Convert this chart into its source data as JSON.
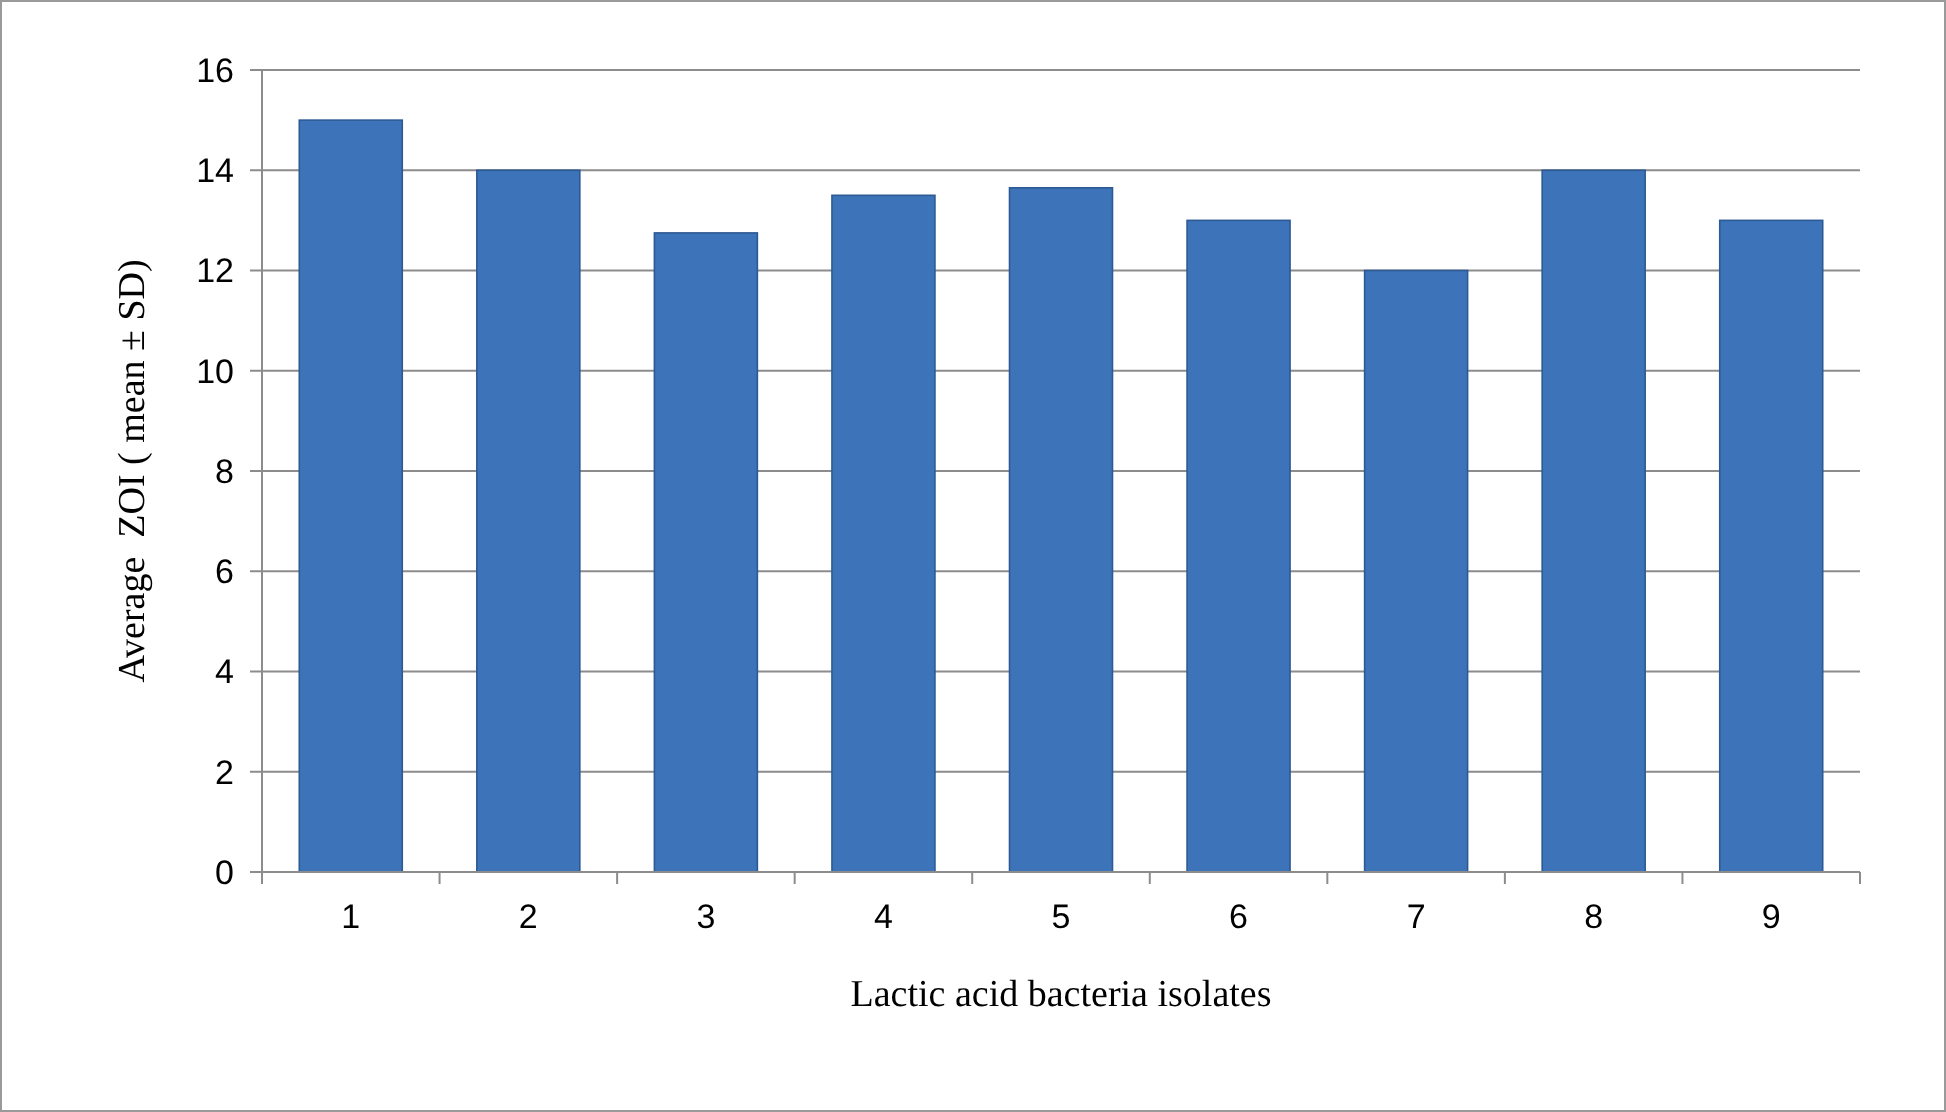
{
  "chart_data": {
    "type": "bar",
    "xlabel": "Lactic acid bacteria isolates",
    "ylabel": "Average  ZOI ( mean ± SD)",
    "categories": [
      "1",
      "2",
      "3",
      "4",
      "5",
      "6",
      "7",
      "8",
      "9"
    ],
    "values": [
      15,
      14,
      12.75,
      13.5,
      13.65,
      13,
      12,
      14,
      13
    ],
    "color": "#3c73b9",
    "ylim": [
      0,
      16
    ],
    "yticks": [
      0,
      2,
      4,
      6,
      8,
      10,
      12,
      14,
      16
    ],
    "grid": "y"
  }
}
